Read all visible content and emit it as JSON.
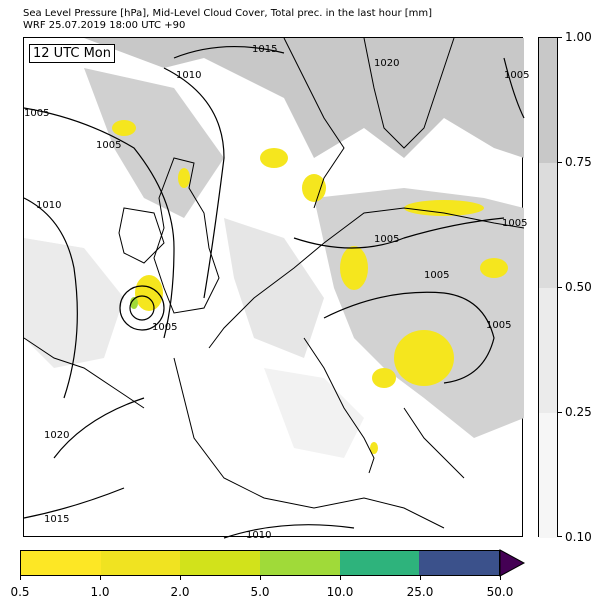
{
  "header": {
    "line1": "Sea Level Pressure [hPa], Mid-Level Cloud Cover, Total prec. in the last hour [mm]",
    "line2": "WRF 25.07.2019 18:00 UTC +90"
  },
  "map": {
    "time_label": "12 UTC Mon",
    "isobar_labels": [
      "1015",
      "1010",
      "1005",
      "1005",
      "1010",
      "1005",
      "1005",
      "1005",
      "1020",
      "1015",
      "1010",
      "1005",
      "1005",
      "1020",
      "1005"
    ]
  },
  "cloud_colorbar": {
    "ticks": [
      "1.00",
      "0.75",
      "0.50",
      "0.25",
      "0.10"
    ],
    "colors": [
      "#c8c8c8",
      "#dcdcdc",
      "#ebebeb",
      "#f6f6f6"
    ]
  },
  "precip_colorbar": {
    "ticks": [
      "0.5",
      "1.0",
      "2.0",
      "5.0",
      "10.0",
      "25.0",
      "50.0"
    ],
    "colors": [
      "#fde725",
      "#f0e321",
      "#d2e21b",
      "#a0da39",
      "#2eb37c",
      "#3b518b"
    ],
    "extend_color": "#440154"
  }
}
